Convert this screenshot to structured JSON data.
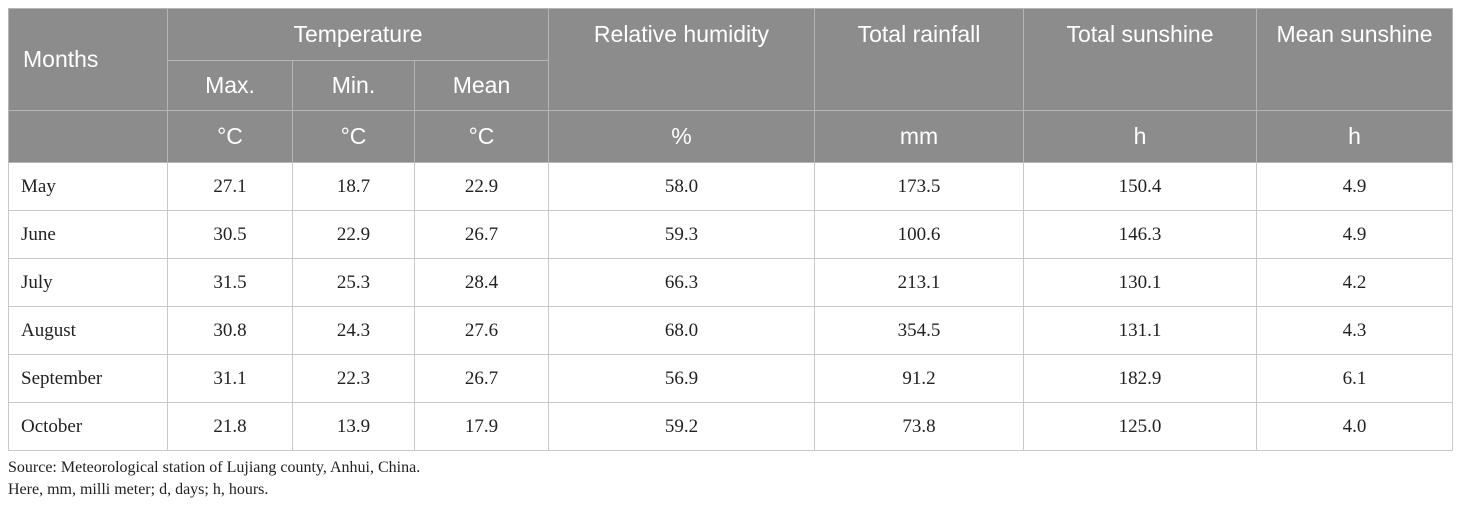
{
  "table": {
    "header": {
      "months": "Months",
      "temperature": "Temperature",
      "temp_max": "Max.",
      "temp_min": "Min.",
      "temp_mean": "Mean",
      "humidity": "Relative humidity",
      "rainfall": "Total rainfall",
      "total_sunshine": "Total sunshine",
      "mean_sunshine": "Mean sunshine",
      "units": [
        "°C",
        "°C",
        "°C",
        "%",
        "mm",
        "h",
        "h"
      ]
    },
    "rows": [
      {
        "month": "May",
        "values": [
          "27.1",
          "18.7",
          "22.9",
          "58.0",
          "173.5",
          "150.4",
          "4.9"
        ]
      },
      {
        "month": "June",
        "values": [
          "30.5",
          "22.9",
          "26.7",
          "59.3",
          "100.6",
          "146.3",
          "4.9"
        ]
      },
      {
        "month": "July",
        "values": [
          "31.5",
          "25.3",
          "28.4",
          "66.3",
          "213.1",
          "130.1",
          "4.2"
        ]
      },
      {
        "month": "August",
        "values": [
          "30.8",
          "24.3",
          "27.6",
          "68.0",
          "354.5",
          "131.1",
          "4.3"
        ]
      },
      {
        "month": "September",
        "values": [
          "31.1",
          "22.3",
          "26.7",
          "56.9",
          "91.2",
          "182.9",
          "6.1"
        ]
      },
      {
        "month": "October",
        "values": [
          "21.8",
          "13.9",
          "17.9",
          "59.2",
          "73.8",
          "125.0",
          "4.0"
        ]
      }
    ]
  },
  "notes": {
    "source": "Source: Meteorological station of Lujiang county, Anhui, China.",
    "abbreviations": "Here, mm, milli meter; d, days; h, hours."
  },
  "colors": {
    "header_bg": "#8c8c8c",
    "header_text": "#ffffff",
    "grid_line": "#c9c9c9"
  }
}
